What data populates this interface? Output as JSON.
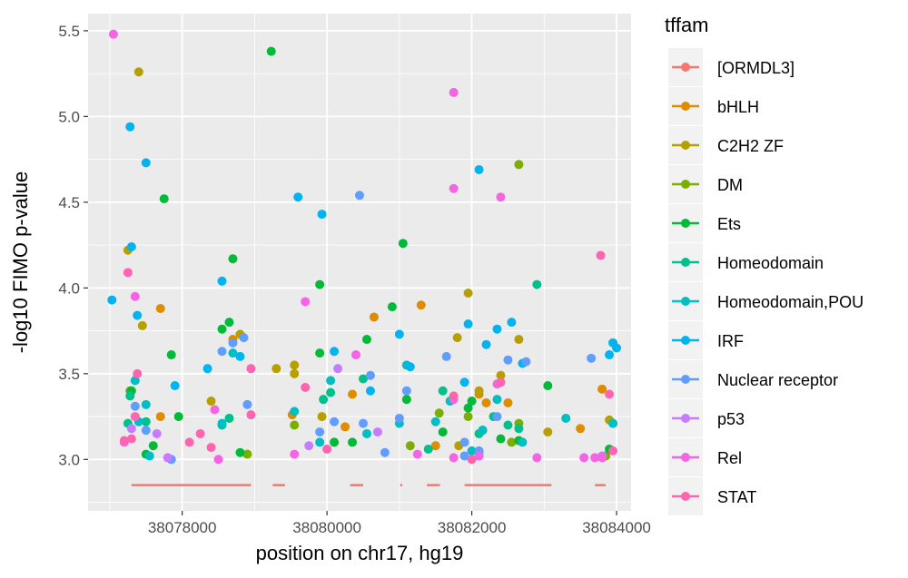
{
  "chart_data": {
    "type": "scatter",
    "xlabel": "position on chr17, hg19",
    "ylabel": "-log10 FIMO p-value",
    "xlim": [
      38076700,
      38084200
    ],
    "ylim": [
      2.7,
      5.6
    ],
    "x_ticks": [
      38078000,
      38080000,
      38082000,
      38084000
    ],
    "x_tick_labels": [
      "38078000",
      "38080000",
      "38082000",
      "38084000"
    ],
    "y_ticks": [
      3.0,
      3.5,
      4.0,
      4.5,
      5.0,
      5.5
    ],
    "y_tick_labels": [
      "3.0",
      "3.5",
      "4.0",
      "4.5",
      "5.0",
      "5.5"
    ],
    "grid": true,
    "legend_title": "tffam",
    "legend_position": "right",
    "series": [
      {
        "name": "[ORMDL3]",
        "color": "#F8766D",
        "kind": "segments",
        "y": 2.85,
        "ranges": [
          [
            38077300,
            38078950
          ],
          [
            38079250,
            38079420
          ],
          [
            38080320,
            38080500
          ],
          [
            38081010,
            38081040
          ],
          [
            38081380,
            38081560
          ],
          [
            38081900,
            38083100
          ],
          [
            38083700,
            38083850
          ]
        ]
      },
      {
        "name": "bHLH",
        "color": "#DE8C00",
        "points": [
          [
            38077700,
            3.88
          ],
          [
            38077700,
            3.25
          ],
          [
            38078700,
            3.7
          ],
          [
            38079520,
            3.26
          ],
          [
            38080350,
            3.38
          ],
          [
            38080250,
            3.19
          ],
          [
            38080650,
            3.83
          ],
          [
            38081300,
            3.9
          ],
          [
            38081500,
            3.08
          ],
          [
            38082100,
            3.38
          ],
          [
            38082200,
            3.33
          ],
          [
            38082500,
            3.33
          ],
          [
            38083500,
            3.18
          ],
          [
            38083800,
            3.41
          ]
        ]
      },
      {
        "name": "C2H2 ZF",
        "color": "#B79F00",
        "points": [
          [
            38077250,
            4.22
          ],
          [
            38077400,
            5.26
          ],
          [
            38077450,
            3.78
          ],
          [
            38078400,
            3.34
          ],
          [
            38078800,
            3.73
          ],
          [
            38079300,
            3.53
          ],
          [
            38079550,
            3.55
          ],
          [
            38079550,
            3.5
          ],
          [
            38079930,
            3.25
          ],
          [
            38081800,
            3.71
          ],
          [
            38081950,
            3.97
          ],
          [
            38082650,
            3.7
          ],
          [
            38082400,
            3.49
          ],
          [
            38082100,
            3.4
          ],
          [
            38083050,
            3.16
          ],
          [
            38083900,
            3.23
          ],
          [
            38081820,
            3.08
          ]
        ]
      },
      {
        "name": "DM",
        "color": "#7CAE00",
        "points": [
          [
            38077280,
            3.4
          ],
          [
            38078900,
            3.03
          ],
          [
            38081150,
            3.08
          ],
          [
            38081550,
            3.27
          ],
          [
            38081950,
            3.25
          ],
          [
            38082650,
            4.72
          ],
          [
            38082650,
            3.21
          ],
          [
            38082550,
            3.1
          ],
          [
            38083850,
            3.02
          ],
          [
            38079550,
            3.2
          ]
        ]
      },
      {
        "name": "Ets",
        "color": "#00BA38",
        "points": [
          [
            38079230,
            5.38
          ],
          [
            38077750,
            4.52
          ],
          [
            38077300,
            3.4
          ],
          [
            38077500,
            3.03
          ],
          [
            38077600,
            3.08
          ],
          [
            38077850,
            3.61
          ],
          [
            38077950,
            3.25
          ],
          [
            38078550,
            3.76
          ],
          [
            38078650,
            3.8
          ],
          [
            38078700,
            4.17
          ],
          [
            38078800,
            3.04
          ],
          [
            38079900,
            4.02
          ],
          [
            38079900,
            3.62
          ],
          [
            38080100,
            3.1
          ],
          [
            38080350,
            3.1
          ],
          [
            38080550,
            3.7
          ],
          [
            38080900,
            3.89
          ],
          [
            38081050,
            4.26
          ],
          [
            38081100,
            3.35
          ],
          [
            38081600,
            3.16
          ],
          [
            38081950,
            3.3
          ],
          [
            38082000,
            3.34
          ],
          [
            38082150,
            3.17
          ],
          [
            38082400,
            3.12
          ],
          [
            38082650,
            3.11
          ],
          [
            38083050,
            3.43
          ],
          [
            38083900,
            3.06
          ],
          [
            38083950,
            3.21
          ]
        ]
      },
      {
        "name": "Homeodomain",
        "color": "#00C08B",
        "points": [
          [
            38077280,
            3.37
          ],
          [
            38077250,
            3.21
          ],
          [
            38077500,
            3.22
          ],
          [
            38078550,
            3.2
          ],
          [
            38078650,
            3.24
          ],
          [
            38079950,
            3.35
          ],
          [
            38080050,
            3.39
          ],
          [
            38080500,
            3.47
          ],
          [
            38081400,
            3.06
          ],
          [
            38081600,
            3.4
          ],
          [
            38082100,
            3.15
          ],
          [
            38082300,
            3.25
          ],
          [
            38082500,
            3.2
          ],
          [
            38082900,
            4.02
          ],
          [
            38082650,
            3.18
          ]
        ]
      },
      {
        "name": "Homeodomain,POU",
        "color": "#00BFC4",
        "points": [
          [
            38077350,
            3.46
          ],
          [
            38077400,
            3.22
          ],
          [
            38077500,
            3.32
          ],
          [
            38077550,
            3.02
          ],
          [
            38078550,
            3.21
          ],
          [
            38078700,
            3.62
          ],
          [
            38079550,
            3.28
          ],
          [
            38079900,
            3.1
          ],
          [
            38080050,
            3.46
          ],
          [
            38080550,
            3.15
          ],
          [
            38081000,
            3.21
          ],
          [
            38081100,
            3.55
          ],
          [
            38081500,
            3.22
          ],
          [
            38081700,
            3.34
          ],
          [
            38082000,
            3.05
          ],
          [
            38082150,
            3.17
          ],
          [
            38082350,
            3.35
          ],
          [
            38082700,
            3.1
          ],
          [
            38083300,
            3.24
          ],
          [
            38083950,
            3.21
          ]
        ]
      },
      {
        "name": "IRF",
        "color": "#00B4F0",
        "points": [
          [
            38077030,
            3.93
          ],
          [
            38077280,
            4.94
          ],
          [
            38077300,
            4.24
          ],
          [
            38077500,
            4.73
          ],
          [
            38077380,
            3.84
          ],
          [
            38077900,
            3.43
          ],
          [
            38078350,
            3.53
          ],
          [
            38078550,
            4.04
          ],
          [
            38078800,
            3.6
          ],
          [
            38079600,
            4.53
          ],
          [
            38079930,
            4.43
          ],
          [
            38080100,
            3.63
          ],
          [
            38080600,
            3.4
          ],
          [
            38081000,
            3.73
          ],
          [
            38081150,
            3.54
          ],
          [
            38081950,
            3.79
          ],
          [
            38082100,
            4.69
          ],
          [
            38082200,
            3.67
          ],
          [
            38082350,
            3.76
          ],
          [
            38082550,
            3.8
          ],
          [
            38082700,
            3.56
          ],
          [
            38083950,
            3.68
          ],
          [
            38084000,
            3.65
          ],
          [
            38083900,
            3.61
          ],
          [
            38081900,
            3.45
          ],
          [
            38082100,
            3.04
          ]
        ]
      },
      {
        "name": "Nuclear receptor",
        "color": "#619CFF",
        "points": [
          [
            38077350,
            3.31
          ],
          [
            38077500,
            3.17
          ],
          [
            38077850,
            3.0
          ],
          [
            38078550,
            3.63
          ],
          [
            38078700,
            3.68
          ],
          [
            38078900,
            3.32
          ],
          [
            38078850,
            3.71
          ],
          [
            38079900,
            3.16
          ],
          [
            38080100,
            3.22
          ],
          [
            38080450,
            4.54
          ],
          [
            38080600,
            3.49
          ],
          [
            38080800,
            3.04
          ],
          [
            38081000,
            3.24
          ],
          [
            38081100,
            3.4
          ],
          [
            38081650,
            3.6
          ],
          [
            38081900,
            3.02
          ],
          [
            38082100,
            3.05
          ],
          [
            38082350,
            3.25
          ],
          [
            38082500,
            3.58
          ],
          [
            38082750,
            3.57
          ],
          [
            38083650,
            3.59
          ],
          [
            38080500,
            3.21
          ],
          [
            38081900,
            3.1
          ]
        ]
      },
      {
        "name": "p53",
        "color": "#C77CFF",
        "points": [
          [
            38077300,
            3.18
          ],
          [
            38077650,
            3.15
          ],
          [
            38079750,
            3.08
          ],
          [
            38080150,
            3.53
          ],
          [
            38080700,
            3.16
          ],
          [
            38083800,
            3.02
          ],
          [
            38077800,
            3.01
          ]
        ]
      },
      {
        "name": "Rel",
        "color": "#F564E3",
        "points": [
          [
            38077050,
            5.48
          ],
          [
            38077350,
            3.95
          ],
          [
            38077200,
            3.1
          ],
          [
            38078450,
            3.29
          ],
          [
            38078500,
            3.0
          ],
          [
            38079550,
            3.03
          ],
          [
            38079700,
            3.92
          ],
          [
            38080400,
            3.61
          ],
          [
            38081250,
            3.03
          ],
          [
            38081750,
            5.14
          ],
          [
            38081750,
            4.58
          ],
          [
            38081750,
            3.35
          ],
          [
            38082400,
            4.53
          ],
          [
            38082350,
            3.44
          ],
          [
            38082100,
            3.02
          ],
          [
            38082900,
            3.01
          ],
          [
            38083550,
            3.01
          ],
          [
            38083700,
            3.01
          ],
          [
            38083800,
            3.01
          ],
          [
            38081750,
            3.01
          ]
        ]
      },
      {
        "name": "STAT",
        "color": "#FF64B0",
        "points": [
          [
            38077200,
            3.11
          ],
          [
            38077250,
            4.09
          ],
          [
            38077380,
            3.5
          ],
          [
            38077350,
            3.25
          ],
          [
            38077300,
            3.12
          ],
          [
            38078100,
            3.1
          ],
          [
            38078250,
            3.15
          ],
          [
            38078400,
            3.07
          ],
          [
            38078950,
            3.53
          ],
          [
            38078950,
            3.26
          ],
          [
            38079700,
            3.42
          ],
          [
            38080000,
            3.06
          ],
          [
            38081750,
            3.37
          ],
          [
            38082000,
            3.0
          ],
          [
            38082400,
            3.45
          ],
          [
            38083780,
            4.19
          ],
          [
            38083900,
            3.38
          ],
          [
            38083950,
            3.05
          ]
        ]
      }
    ]
  }
}
